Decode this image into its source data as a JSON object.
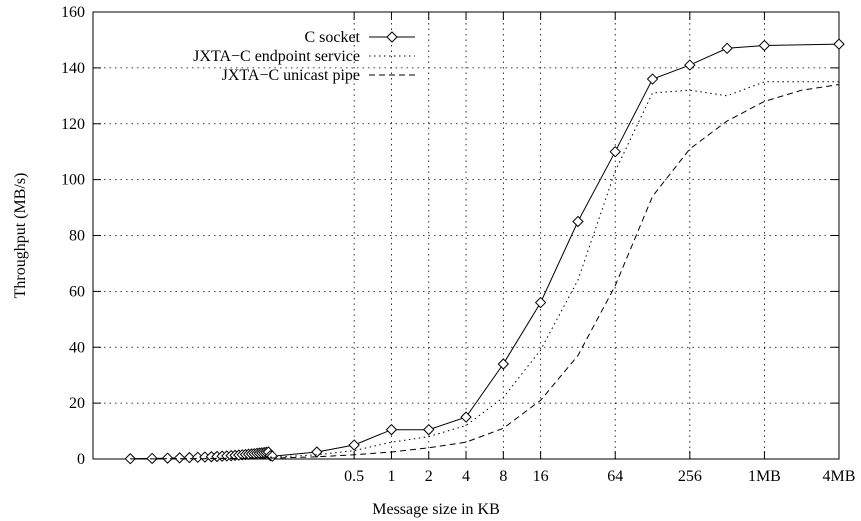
{
  "chart_data": {
    "type": "line",
    "title": "",
    "xlabel": "Message size in KB",
    "ylabel": "Throughput (MB/s)",
    "ylim": [
      0,
      160
    ],
    "yticks": [
      0,
      20,
      40,
      60,
      80,
      100,
      120,
      140,
      160
    ],
    "xscale": "log2",
    "xlim_kb": [
      0.0039,
      4096
    ],
    "xticks": [
      {
        "label": "0.5",
        "kb": 0.5
      },
      {
        "label": "1",
        "kb": 1
      },
      {
        "label": "2",
        "kb": 2
      },
      {
        "label": "4",
        "kb": 4
      },
      {
        "label": "8",
        "kb": 8
      },
      {
        "label": "16",
        "kb": 16
      },
      {
        "label": "64",
        "kb": 64
      },
      {
        "label": "256",
        "kb": 256
      },
      {
        "label": "1MB",
        "kb": 1024
      },
      {
        "label": "4MB",
        "kb": 4096
      }
    ],
    "grid": true,
    "legend_position": "top-right",
    "series": [
      {
        "name": "C socket",
        "style": "solid",
        "marker": "diamond",
        "color": "#000000",
        "points": [
          [
            0.0078,
            0.1
          ],
          [
            0.0117,
            0.2
          ],
          [
            0.0156,
            0.3
          ],
          [
            0.0195,
            0.4
          ],
          [
            0.0234,
            0.5
          ],
          [
            0.0273,
            0.6
          ],
          [
            0.0312,
            0.7
          ],
          [
            0.0352,
            0.8
          ],
          [
            0.0391,
            0.9
          ],
          [
            0.043,
            1.0
          ],
          [
            0.0469,
            1.1
          ],
          [
            0.0508,
            1.2
          ],
          [
            0.0547,
            1.3
          ],
          [
            0.0586,
            1.4
          ],
          [
            0.0625,
            1.5
          ],
          [
            0.0664,
            1.6
          ],
          [
            0.0703,
            1.7
          ],
          [
            0.0742,
            1.8
          ],
          [
            0.0781,
            1.9
          ],
          [
            0.082,
            2.0
          ],
          [
            0.0859,
            2.1
          ],
          [
            0.0898,
            2.2
          ],
          [
            0.0938,
            2.3
          ],
          [
            0.0977,
            2.4
          ],
          [
            0.1016,
            2.5
          ],
          [
            0.1055,
            1.2
          ],
          [
            0.1094,
            1.0
          ],
          [
            0.25,
            2.5
          ],
          [
            0.5,
            5
          ],
          [
            1,
            10.5
          ],
          [
            2,
            10.5
          ],
          [
            4,
            15
          ],
          [
            8,
            34
          ],
          [
            16,
            56
          ],
          [
            32,
            85
          ],
          [
            64,
            110
          ],
          [
            128,
            136
          ],
          [
            256,
            141
          ],
          [
            512,
            147
          ],
          [
            1024,
            148
          ],
          [
            4096,
            148.5
          ]
        ]
      },
      {
        "name": "JXTA−C endpoint service",
        "style": "dotted",
        "marker": "none",
        "color": "#000000",
        "points": [
          [
            0.0078,
            0.05
          ],
          [
            0.0312,
            0.2
          ],
          [
            0.0625,
            0.4
          ],
          [
            0.125,
            0.8
          ],
          [
            0.25,
            1.5
          ],
          [
            0.5,
            3
          ],
          [
            1,
            6
          ],
          [
            2,
            8
          ],
          [
            4,
            12
          ],
          [
            8,
            22
          ],
          [
            16,
            39
          ],
          [
            32,
            64
          ],
          [
            64,
            103
          ],
          [
            128,
            131
          ],
          [
            256,
            132
          ],
          [
            512,
            130
          ],
          [
            1024,
            135
          ],
          [
            2048,
            135
          ],
          [
            4096,
            135
          ]
        ]
      },
      {
        "name": "JXTA−C unicast pipe",
        "style": "dashed",
        "marker": "none",
        "color": "#000000",
        "points": [
          [
            0.0078,
            0.03
          ],
          [
            0.0312,
            0.1
          ],
          [
            0.0625,
            0.2
          ],
          [
            0.125,
            0.4
          ],
          [
            0.25,
            0.8
          ],
          [
            0.5,
            1.5
          ],
          [
            1,
            2.5
          ],
          [
            2,
            4
          ],
          [
            4,
            6
          ],
          [
            8,
            11
          ],
          [
            16,
            21
          ],
          [
            32,
            37
          ],
          [
            64,
            62
          ],
          [
            128,
            94
          ],
          [
            256,
            111
          ],
          [
            512,
            121
          ],
          [
            1024,
            128
          ],
          [
            2048,
            132
          ],
          [
            4096,
            134
          ]
        ]
      }
    ]
  }
}
